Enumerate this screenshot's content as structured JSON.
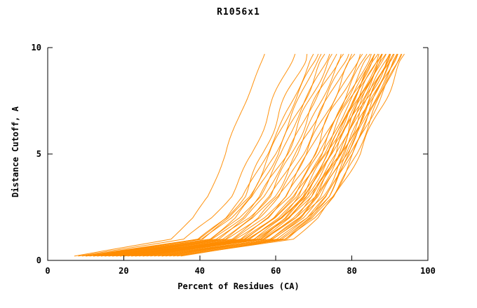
{
  "chart_data": {
    "type": "line",
    "title": "R1056x1",
    "xlabel": "Percent of Residues (CA)",
    "ylabel": "Distance Cutoff, A",
    "xlim": [
      0,
      100
    ],
    "ylim": [
      0,
      10
    ],
    "xticks": [
      0,
      20,
      40,
      60,
      80,
      100
    ],
    "yticks": [
      0,
      5,
      10
    ],
    "grid": false,
    "legend": "none",
    "line_color": "#ff8c00",
    "axis_color": "#000000",
    "y_levels": [
      0.2,
      1,
      2,
      3,
      5,
      7,
      9.7
    ],
    "series": [
      {
        "x": [
          7,
          32,
          38,
          42,
          47,
          51,
          57
        ]
      },
      {
        "x": [
          8,
          36.5,
          43.3,
          47.9,
          53.6,
          58.2,
          65
        ]
      },
      {
        "x": [
          9,
          39.5,
          46.8,
          51.7,
          57.8,
          62.7,
          70
        ]
      },
      {
        "x": [
          10,
          40.5,
          47.8,
          52.7,
          58.8,
          63.7,
          71
        ]
      },
      {
        "x": [
          10,
          41,
          48.4,
          53.4,
          59.6,
          64.6,
          72
        ]
      },
      {
        "x": [
          11,
          42,
          49.4,
          54.4,
          60.6,
          65.6,
          73
        ]
      },
      {
        "x": [
          12,
          43,
          50.4,
          55.4,
          61.6,
          66.6,
          74
        ]
      },
      {
        "x": [
          12,
          43.5,
          51.1,
          56.1,
          62.4,
          67.4,
          75
        ]
      },
      {
        "x": [
          13,
          44.5,
          52.1,
          57.1,
          63.4,
          68.4,
          76
        ]
      },
      {
        "x": [
          13,
          45,
          52.7,
          57.8,
          64.2,
          69.3,
          77
        ]
      },
      {
        "x": [
          14,
          46,
          53.7,
          58.8,
          65.2,
          70.3,
          78
        ]
      },
      {
        "x": [
          14,
          46.5,
          54.3,
          59.5,
          66,
          71.2,
          79
        ]
      },
      {
        "x": [
          15,
          47.5,
          55.3,
          60.5,
          67,
          72.2,
          80
        ]
      },
      {
        "x": [
          15,
          48,
          55.9,
          61.2,
          67.8,
          73.1,
          81
        ]
      },
      {
        "x": [
          16,
          49,
          56.9,
          62.2,
          68.8,
          74.1,
          82
        ]
      },
      {
        "x": [
          16,
          49.5,
          57.5,
          62.9,
          69.6,
          75,
          83
        ]
      },
      {
        "x": [
          17,
          50.5,
          58.5,
          63.9,
          70.6,
          76,
          84
        ]
      },
      {
        "x": [
          17,
          51,
          59.2,
          64.6,
          71.4,
          76.8,
          85
        ]
      },
      {
        "x": [
          18,
          51.5,
          59.5,
          64.9,
          71.6,
          77,
          85
        ]
      },
      {
        "x": [
          18,
          52,
          60.2,
          65.6,
          72.4,
          77.8,
          86
        ]
      },
      {
        "x": [
          19,
          52.5,
          60.5,
          65.9,
          72.6,
          78,
          86
        ]
      },
      {
        "x": [
          19,
          53,
          61.2,
          66.6,
          73.4,
          78.8,
          87
        ]
      },
      {
        "x": [
          20,
          53.5,
          61.5,
          66.9,
          73.6,
          79,
          87
        ]
      },
      {
        "x": [
          20,
          54,
          62.2,
          67.6,
          74.4,
          79.8,
          88
        ]
      },
      {
        "x": [
          21,
          54.5,
          62.5,
          67.9,
          74.6,
          80,
          88
        ]
      },
      {
        "x": [
          22,
          55,
          62.9,
          68.2,
          74.8,
          80.1,
          88
        ]
      },
      {
        "x": [
          22,
          55.5,
          63.5,
          68.9,
          75.6,
          81,
          89
        ]
      },
      {
        "x": [
          23,
          56,
          63.9,
          69.2,
          75.8,
          81.1,
          89
        ]
      },
      {
        "x": [
          23,
          56.5,
          64.5,
          69.9,
          76.6,
          82,
          90
        ]
      },
      {
        "x": [
          24,
          57,
          64.9,
          70.2,
          76.8,
          82.1,
          90
        ]
      },
      {
        "x": [
          25,
          57.5,
          65.3,
          70.5,
          77,
          82.2,
          90
        ]
      },
      {
        "x": [
          26,
          58.5,
          66.3,
          71.5,
          78,
          83.2,
          91
        ]
      },
      {
        "x": [
          27,
          59,
          66.7,
          71.8,
          78.2,
          83.3,
          91
        ]
      },
      {
        "x": [
          28,
          59.5,
          67.1,
          72.1,
          78.4,
          83.4,
          91
        ]
      },
      {
        "x": [
          29,
          60.5,
          68.1,
          73.1,
          79.4,
          84.4,
          92
        ]
      },
      {
        "x": [
          30,
          61,
          68.4,
          73.4,
          79.6,
          84.6,
          92
        ]
      },
      {
        "x": [
          31,
          61.5,
          68.8,
          73.7,
          79.8,
          84.7,
          92
        ]
      },
      {
        "x": [
          32,
          62.5,
          69.8,
          74.7,
          80.8,
          85.7,
          93
        ]
      },
      {
        "x": [
          33,
          63,
          70.2,
          75,
          81,
          85.8,
          93
        ]
      },
      {
        "x": [
          34,
          64,
          71.2,
          76,
          82,
          86.8,
          94
        ]
      },
      {
        "x": [
          35,
          62.5,
          69.1,
          73.5,
          79,
          83.4,
          90
        ]
      },
      {
        "x": [
          30,
          59,
          66,
          70.6,
          76.4,
          81,
          88
        ]
      },
      {
        "x": [
          25,
          55.5,
          62.8,
          67.7,
          73.8,
          78.7,
          86
        ]
      },
      {
        "x": [
          12,
          40,
          46.7,
          51.2,
          56.8,
          61.3,
          68
        ]
      }
    ]
  }
}
